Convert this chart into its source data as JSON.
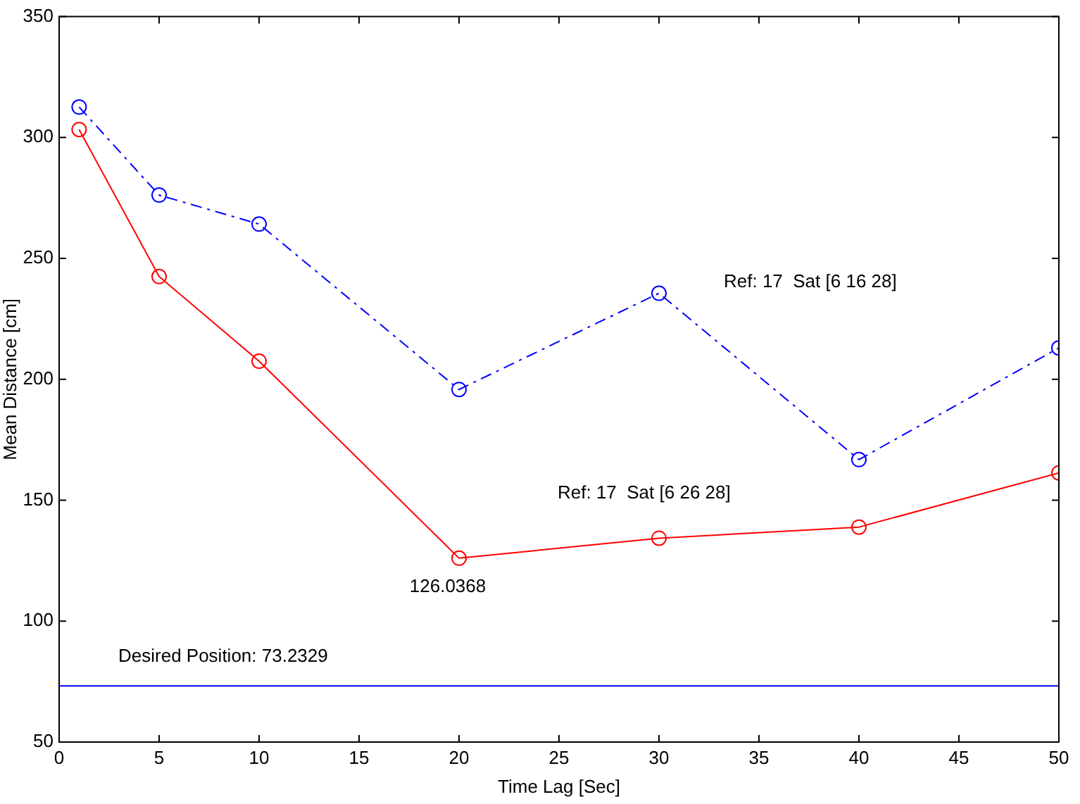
{
  "chart_data": {
    "type": "line",
    "xlabel": "Time Lag [Sec]",
    "ylabel": "Mean Distance [cm]",
    "xlim": [
      0,
      50
    ],
    "xticks": [
      0,
      5,
      10,
      15,
      20,
      25,
      30,
      35,
      40,
      45,
      50
    ],
    "ylim": [
      50,
      350
    ],
    "yticks": [
      50,
      100,
      150,
      200,
      250,
      300,
      350
    ],
    "x": [
      1,
      5,
      10,
      20,
      30,
      40,
      50
    ],
    "series": [
      {
        "name": "Ref: 17  Sat [6 16 28]",
        "color": "#0000ff",
        "line_style": "dashdot",
        "values": [
          312.6,
          276.2,
          264.2,
          195.8,
          235.6,
          166.8,
          213
        ]
      },
      {
        "name": "Ref: 17  Sat [6 26 28]",
        "color": "#ff0000",
        "line_style": "solid",
        "values": [
          303.3,
          242.5,
          207.5,
          126.0368,
          134.3,
          138.9,
          161.3
        ],
        "value_labels": [
          null,
          null,
          null,
          "126.0368",
          null,
          null,
          null
        ]
      }
    ],
    "marker": "circle",
    "grid": false,
    "legend": false,
    "ref_lines": [
      {
        "axis": "y",
        "value": 73.2329,
        "label": "Desired Position: 73.2329",
        "color": "#0000ff"
      }
    ]
  }
}
